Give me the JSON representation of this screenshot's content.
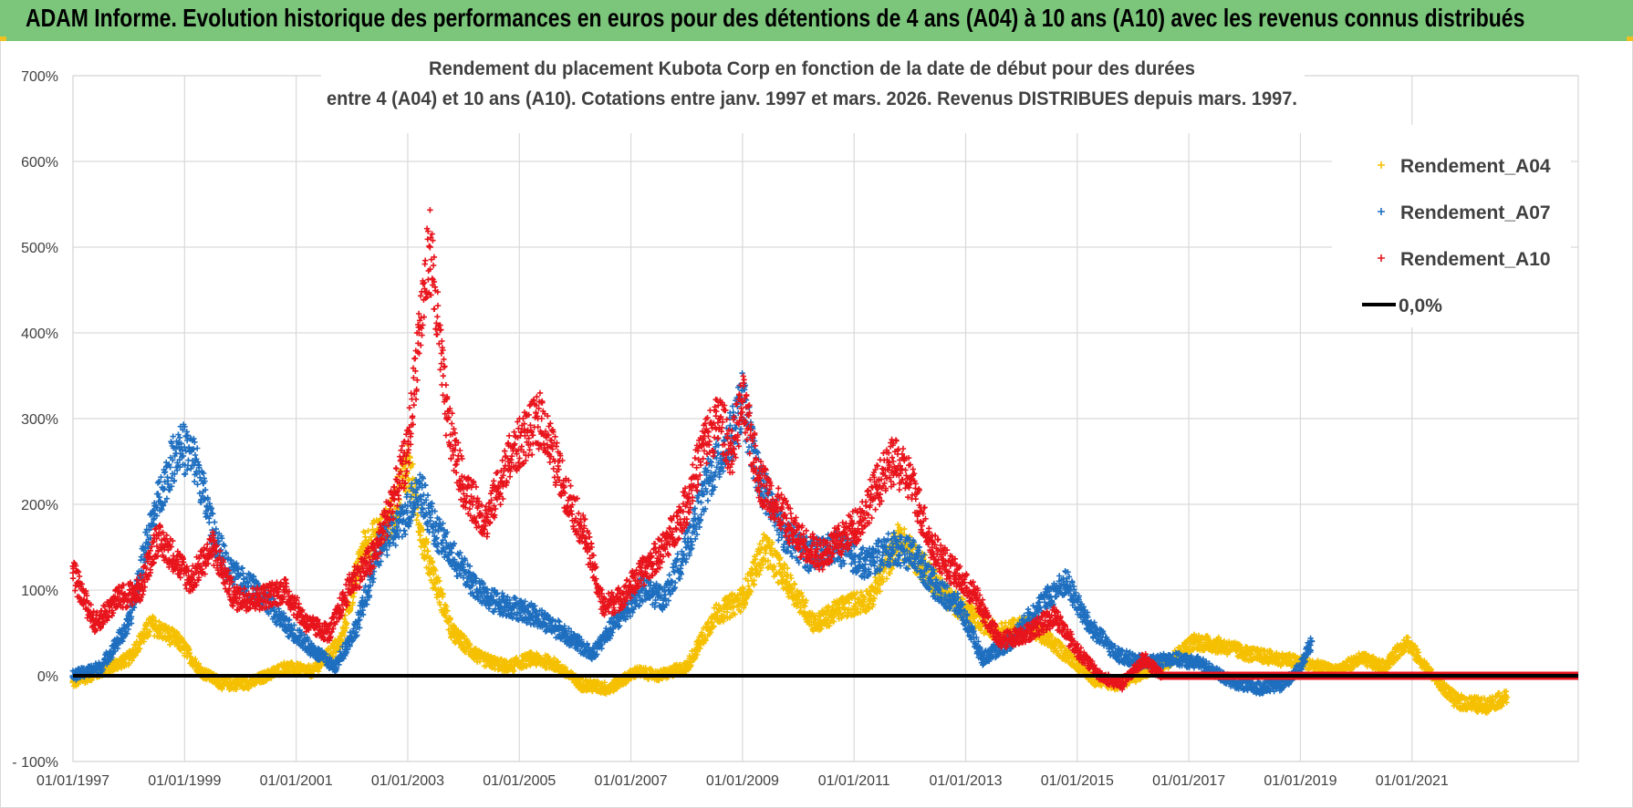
{
  "header": {
    "title": "ADAM Informe. Evolution historique des performances en euros pour des détentions de 4 ans (A04) à 10 ans (A10) avec les revenus connus distribués"
  },
  "chart_data": {
    "type": "scatter",
    "title_line1": "Rendement du placement Kubota Corp en fonction de la date de début pour des durées",
    "title_line2": "entre 4 (A04) et 10 ans (A10). Cotations entre janv. 1997 et mars. 2026. Revenus DISTRIBUES depuis mars. 1997.",
    "xlabel": "",
    "ylabel": "",
    "xlim": [
      1997.0,
      2023.98
    ],
    "ylim": [
      -100,
      700
    ],
    "x_tick_labels": [
      "01/01/1997",
      "01/01/1999",
      "01/01/2001",
      "01/01/2003",
      "01/01/2005",
      "01/01/2007",
      "01/01/2009",
      "01/01/2011",
      "01/01/2013",
      "01/01/2015",
      "01/01/2017",
      "01/01/2019",
      "01/01/2021"
    ],
    "x_tick_values": [
      1997,
      1999,
      2001,
      2003,
      2005,
      2007,
      2009,
      2011,
      2013,
      2015,
      2017,
      2019,
      2021
    ],
    "y_tick_labels": [
      "- 100%",
      "0%",
      "100%",
      "200%",
      "300%",
      "400%",
      "500%",
      "600%",
      "700%"
    ],
    "y_tick_values": [
      -100,
      0,
      100,
      200,
      300,
      400,
      500,
      600,
      700
    ],
    "grid": true,
    "legend_position": "top-right",
    "series": [
      {
        "name": "Rendement_A04",
        "color": "#f5c000",
        "marker": "+",
        "x": [
          1997.0,
          1997.5,
          1998.0,
          1998.4,
          1998.9,
          1999.3,
          1999.7,
          2000.2,
          2000.8,
          2001.3,
          2001.8,
          2002.2,
          2002.7,
          2003.0,
          2003.3,
          2003.8,
          2004.3,
          2004.8,
          2005.2,
          2005.6,
          2006.1,
          2006.6,
          2007.1,
          2007.5,
          2008.0,
          2008.5,
          2009.0,
          2009.4,
          2009.8,
          2010.3,
          2010.8,
          2011.3,
          2011.8,
          2012.2,
          2012.7,
          2013.1,
          2013.6,
          2014.1,
          2014.5,
          2014.9,
          2015.3,
          2015.7,
          2016.1,
          2016.6,
          2017.1,
          2017.6,
          2018.1,
          2018.6,
          2019.1,
          2019.6,
          2020.1,
          2020.5,
          2020.9,
          2021.3,
          2021.8,
          2022.3,
          2022.7
        ],
        "values": [
          -8,
          5,
          20,
          60,
          40,
          5,
          -10,
          -8,
          10,
          5,
          40,
          150,
          180,
          250,
          150,
          50,
          20,
          10,
          20,
          15,
          -10,
          -15,
          5,
          0,
          10,
          70,
          90,
          150,
          110,
          60,
          80,
          90,
          160,
          130,
          90,
          70,
          50,
          60,
          40,
          20,
          -5,
          -10,
          0,
          15,
          40,
          35,
          25,
          20,
          15,
          5,
          20,
          10,
          40,
          5,
          -30,
          -35,
          -25
        ]
      },
      {
        "name": "Rendement_A07",
        "color": "#1f6fc0",
        "marker": "+",
        "x": [
          1997.0,
          1997.5,
          1998.0,
          1998.3,
          1998.6,
          1998.9,
          1999.2,
          1999.5,
          1999.8,
          2000.3,
          2000.8,
          2001.3,
          2001.7,
          2002.1,
          2002.5,
          2002.9,
          2003.2,
          2003.5,
          2003.9,
          2004.4,
          2004.9,
          2005.3,
          2005.8,
          2006.3,
          2006.7,
          2007.2,
          2007.6,
          2008.0,
          2008.4,
          2008.8,
          2009.0,
          2009.3,
          2009.7,
          2010.2,
          2010.7,
          2011.2,
          2011.7,
          2012.1,
          2012.5,
          2012.9,
          2013.3,
          2013.8,
          2014.3,
          2014.8,
          2015.2,
          2015.7,
          2016.2,
          2016.7,
          2017.2,
          2017.7,
          2018.2,
          2018.7,
          2019.0,
          2019.2
        ],
        "values": [
          0,
          10,
          60,
          150,
          220,
          270,
          250,
          170,
          120,
          100,
          60,
          30,
          10,
          60,
          150,
          180,
          220,
          170,
          130,
          90,
          80,
          70,
          50,
          25,
          60,
          100,
          90,
          150,
          230,
          280,
          320,
          230,
          170,
          140,
          150,
          130,
          150,
          140,
          100,
          80,
          20,
          40,
          80,
          110,
          60,
          25,
          15,
          20,
          15,
          -5,
          -15,
          -10,
          10,
          40
        ]
      },
      {
        "name": "Rendement_A10",
        "color": "#e8141c",
        "marker": "+",
        "x": [
          1997.0,
          1997.4,
          1997.8,
          1998.2,
          1998.5,
          1998.8,
          1999.1,
          1999.5,
          1999.9,
          2000.3,
          2000.8,
          2001.2,
          2001.6,
          2002.0,
          2002.4,
          2002.7,
          2003.0,
          2003.2,
          2003.4,
          2003.7,
          2004.0,
          2004.4,
          2004.8,
          2005.1,
          2005.4,
          2005.8,
          2006.2,
          2006.5,
          2006.8,
          2007.2,
          2007.6,
          2008.0,
          2008.3,
          2008.6,
          2008.8,
          2009.0,
          2009.3,
          2009.6,
          2010.0,
          2010.4,
          2010.8,
          2011.1,
          2011.4,
          2011.7,
          2012.0,
          2012.4,
          2012.8,
          2013.2,
          2013.6,
          2014.1,
          2014.6,
          2015.0,
          2015.4,
          2015.8,
          2016.2,
          2016.5
        ],
        "values": [
          120,
          60,
          90,
          100,
          160,
          140,
          110,
          150,
          90,
          90,
          100,
          60,
          50,
          110,
          140,
          200,
          260,
          400,
          500,
          300,
          220,
          180,
          250,
          280,
          300,
          220,
          160,
          80,
          90,
          120,
          150,
          200,
          270,
          300,
          260,
          320,
          230,
          200,
          160,
          140,
          160,
          180,
          220,
          250,
          230,
          150,
          120,
          90,
          40,
          50,
          70,
          30,
          0,
          -10,
          20,
          0
        ]
      },
      {
        "name": "0,0%",
        "color": "#000000",
        "marker": "line",
        "x": [
          1997.0,
          2023.98
        ],
        "values": [
          0,
          0
        ]
      }
    ],
    "annotations": [
      {
        "series": "Rendement_A10",
        "x": [
          2016.5,
          2023.98
        ],
        "values": [
          0,
          0
        ],
        "note": "flat band at 0%"
      }
    ]
  }
}
